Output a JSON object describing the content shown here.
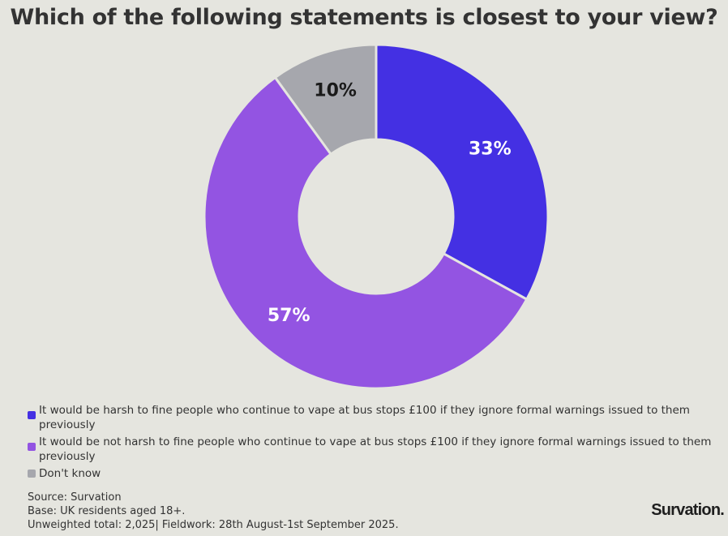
{
  "chart_data": {
    "type": "pie",
    "title": "Which of the following statements is closest to your view?",
    "donut": true,
    "slices": [
      {
        "label": "It would be harsh to fine people who continue to vape at bus stops £100 if they ignore formal warnings issued to them previously",
        "value": 33,
        "display": "33%",
        "color": "#4430e3",
        "text_color": "#ffffff"
      },
      {
        "label": "It would be not harsh to fine people who continue to vape at bus stops £100 if they ignore formal warnings issued to them previously",
        "value": 57,
        "display": "57%",
        "color": "#9354e2",
        "text_color": "#ffffff"
      },
      {
        "label": "Don't know",
        "value": 10,
        "display": "10%",
        "color": "#a6a7ad",
        "text_color": "#1a1a1a"
      }
    ],
    "legend_position": "bottom-left"
  },
  "footer": {
    "source": "Source: Survation",
    "base": "Base: UK residents aged 18+.",
    "fieldwork": "Unweighted total: 2,025| Fieldwork: 28th August-1st September 2025."
  },
  "brand": "Survation."
}
